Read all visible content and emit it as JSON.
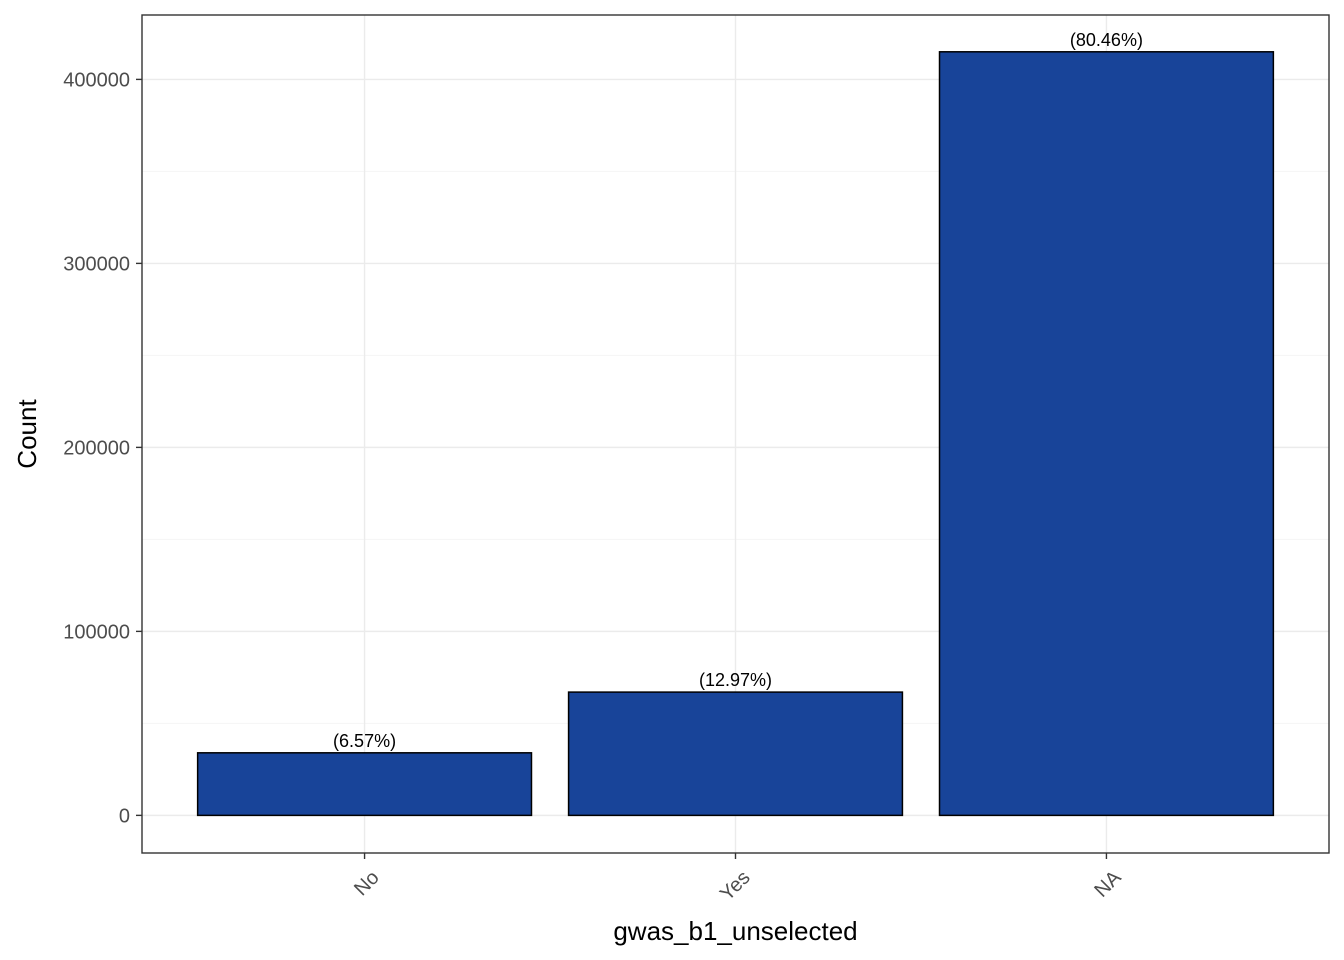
{
  "chart_data": {
    "type": "bar",
    "categories": [
      "No",
      "Yes",
      "NA"
    ],
    "values": [
      34000,
      67000,
      415000
    ],
    "data_labels": [
      "(6.57%)",
      "(12.97%)",
      "(80.46%)"
    ],
    "title": "",
    "xlabel": "gwas_b1_unselected",
    "ylabel": "Count",
    "ylim": [
      -20450,
      435000
    ],
    "yticks": [
      0,
      100000,
      200000,
      300000,
      400000
    ],
    "ytick_labels": [
      "0",
      "100000",
      "200000",
      "300000",
      "400000"
    ],
    "grid": true,
    "x_tick_rotation": "45 degrees",
    "colors": {
      "bar_fill": "#184499",
      "bar_outline": "#000000",
      "grid_major": "#ebebeb",
      "grid_minor": "#f5f5f5",
      "panel_border": "#333333",
      "tick_text": "#4d4d4d"
    }
  }
}
